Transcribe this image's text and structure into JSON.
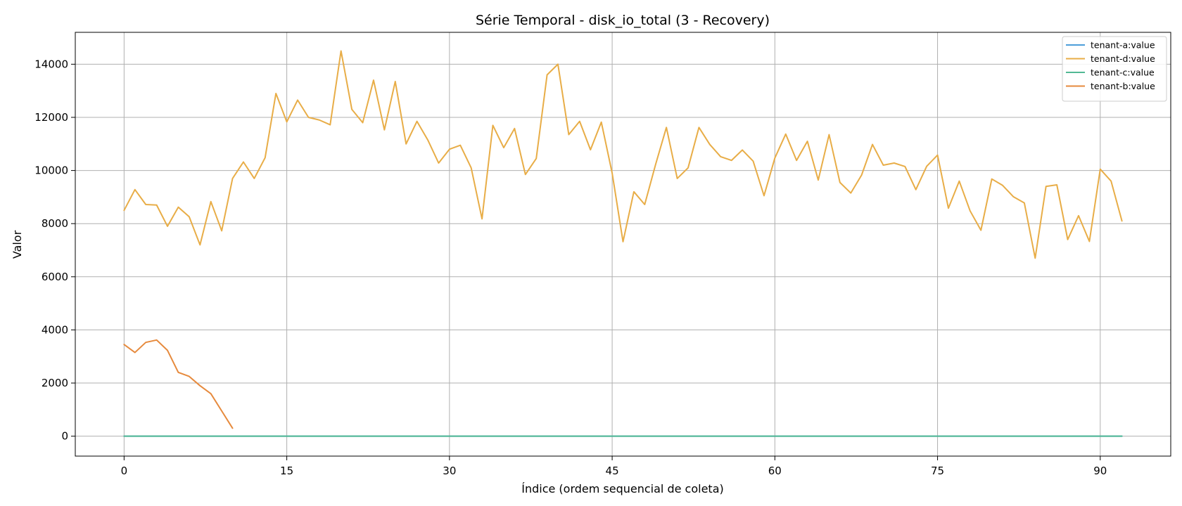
{
  "chart_data": {
    "type": "line",
    "title": "Série Temporal - disk_io_total (3 - Recovery)",
    "xlabel": "Índice (ordem sequencial de coleta)",
    "ylabel": "Valor",
    "xlim": [
      -4.5,
      96.5
    ],
    "ylim": [
      -750,
      15200
    ],
    "xticks": [
      0,
      15,
      30,
      45,
      60,
      75,
      90
    ],
    "yticks": [
      0,
      2000,
      4000,
      6000,
      8000,
      10000,
      12000,
      14000
    ],
    "grid": true,
    "legend_position": "top-right",
    "series": [
      {
        "name": "tenant-a:value",
        "color": "#4c9ed9",
        "x_start": 0,
        "values": [
          0,
          0,
          0,
          0,
          0,
          0,
          0,
          0,
          0,
          0,
          0,
          0,
          0,
          0,
          0,
          0,
          0,
          0,
          0,
          0,
          0,
          0,
          0,
          0,
          0,
          0,
          0,
          0,
          0,
          0,
          0,
          0,
          0,
          0,
          0,
          0,
          0,
          0,
          0,
          0,
          0,
          0,
          0,
          0,
          0,
          0,
          0,
          0,
          0,
          0,
          0,
          0,
          0,
          0,
          0,
          0,
          0,
          0,
          0,
          0,
          0,
          0,
          0,
          0,
          0,
          0,
          0,
          0,
          0,
          0,
          0,
          0,
          0,
          0,
          0,
          0,
          0,
          0,
          0,
          0,
          0,
          0,
          0,
          0,
          0,
          0,
          0,
          0,
          0,
          0,
          0,
          0,
          0
        ]
      },
      {
        "name": "tenant-d:value",
        "color": "#e8ad47",
        "x_start": 0,
        "values": [
          8500,
          9280,
          8720,
          8700,
          7900,
          8620,
          8260,
          7200,
          8830,
          7730,
          9700,
          10320,
          9700,
          10480,
          12900,
          11830,
          12650,
          12000,
          11900,
          11720,
          14500,
          12300,
          11800,
          13400,
          11530,
          13350,
          11000,
          11850,
          11150,
          10280,
          10800,
          10950,
          10100,
          8180,
          11700,
          10860,
          11580,
          9850,
          10450,
          13600,
          14000,
          11350,
          11850,
          10780,
          11820,
          9900,
          7320,
          9200,
          8720,
          10220,
          11620,
          9700,
          10100,
          11620,
          10980,
          10520,
          10380,
          10770,
          10350,
          9050,
          10470,
          11370,
          10380,
          11100,
          9640,
          11350,
          9550,
          9150,
          9830,
          10980,
          10200,
          10280,
          10150,
          9280,
          10160,
          10580,
          8580,
          9600,
          8480,
          7750,
          9680,
          9440,
          9010,
          8780,
          6700,
          9400,
          9460,
          7400,
          8300,
          7330,
          10050,
          9600,
          8100
        ]
      },
      {
        "name": "tenant-c:value",
        "color": "#52b894",
        "x_start": 0,
        "values": [
          0,
          0,
          0,
          0,
          0,
          0,
          0,
          0,
          0,
          0,
          0,
          0,
          0,
          0,
          0,
          0,
          0,
          0,
          0,
          0,
          0,
          0,
          0,
          0,
          0,
          0,
          0,
          0,
          0,
          0,
          0,
          0,
          0,
          0,
          0,
          0,
          0,
          0,
          0,
          0,
          0,
          0,
          0,
          0,
          0,
          0,
          0,
          0,
          0,
          0,
          0,
          0,
          0,
          0,
          0,
          0,
          0,
          0,
          0,
          0,
          0,
          0,
          0,
          0,
          0,
          0,
          0,
          0,
          0,
          0,
          0,
          0,
          0,
          0,
          0,
          0,
          0,
          0,
          0,
          0,
          0,
          0,
          0,
          0,
          0,
          0,
          0,
          0,
          0,
          0,
          0,
          0,
          0
        ]
      },
      {
        "name": "tenant-b:value",
        "color": "#e68a3d",
        "x_start": 0,
        "values": [
          3450,
          3150,
          3530,
          3620,
          3230,
          2400,
          2250,
          1900,
          1600,
          950,
          300
        ]
      }
    ]
  }
}
